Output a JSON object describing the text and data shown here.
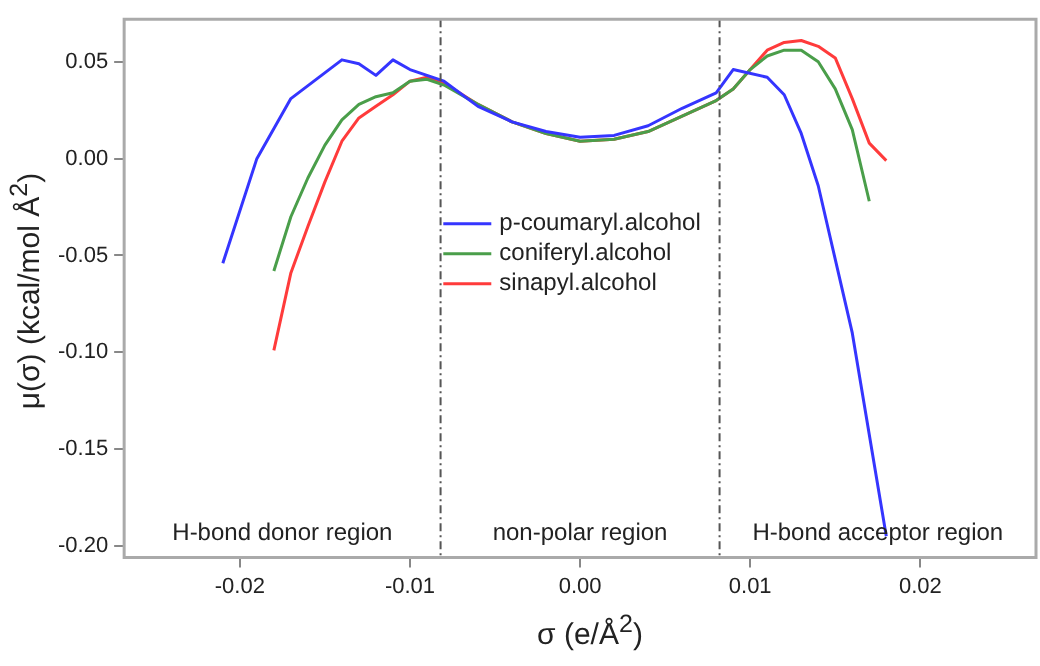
{
  "chart_data": {
    "type": "line",
    "xlabel": "σ (e/Å$^{2}$)",
    "ylabel": "μ(σ) (kcal/mol Å$^{2}$)",
    "xlim": [
      -0.0268,
      0.0268
    ],
    "ylim": [
      -0.206,
      0.072
    ],
    "xticks": [
      -0.02,
      -0.01,
      {
        "value": 0,
        "label": "0.00"
      },
      0.01,
      0.02
    ],
    "yticks": [
      {
        "value": -0.2,
        "label": "-0.20"
      },
      -0.15,
      {
        "value": -0.1,
        "label": "-0.10"
      },
      -0.05,
      {
        "value": 0,
        "label": "0.00"
      },
      0.05
    ],
    "grid": false,
    "legend": "center",
    "marker": "none",
    "line_style": "solid",
    "series": [
      {
        "name": "p-coumaryl.alcohol",
        "color": "#3535ff",
        "x": [
          -0.021,
          -0.019,
          -0.017,
          -0.014,
          -0.013,
          -0.012,
          -0.011,
          -0.01,
          -0.009,
          -0.008,
          -0.006,
          -0.004,
          -0.002,
          0,
          0.002,
          0.004,
          0.006,
          0.008,
          0.009,
          0.011,
          0.012,
          0.013,
          0.014,
          0.016,
          0.018
        ],
        "values": [
          -0.054,
          0.0,
          0.031,
          0.051,
          0.049,
          0.043,
          0.051,
          0.046,
          0.043,
          0.04,
          0.027,
          0.019,
          0.014,
          0.011,
          0.012,
          0.017,
          0.026,
          0.034,
          0.046,
          0.042,
          0.033,
          0.013,
          -0.014,
          -0.09,
          -0.195
        ]
      },
      {
        "name": "coniferyl.alcohol",
        "color": "#4a9e4a",
        "x": [
          -0.018,
          -0.017,
          -0.016,
          -0.015,
          -0.014,
          -0.013,
          -0.012,
          -0.011,
          -0.01,
          -0.009,
          -0.008,
          -0.006,
          -0.004,
          -0.002,
          0,
          0.002,
          0.004,
          0.006,
          0.008,
          0.009,
          0.01,
          0.011,
          0.012,
          0.013,
          0.014,
          0.015,
          0.016,
          0.017
        ],
        "values": [
          -0.058,
          -0.03,
          -0.01,
          0.007,
          0.02,
          0.028,
          0.032,
          0.034,
          0.04,
          0.041,
          0.038,
          0.028,
          0.019,
          0.013,
          0.009,
          0.01,
          0.014,
          0.022,
          0.03,
          0.036,
          0.046,
          0.053,
          0.056,
          0.056,
          0.05,
          0.036,
          0.015,
          -0.022
        ]
      },
      {
        "name": "sinapyl.alcohol",
        "color": "#ff3b3b",
        "x": [
          -0.018,
          -0.017,
          -0.016,
          -0.015,
          -0.014,
          -0.013,
          -0.012,
          -0.011,
          -0.01,
          -0.009,
          -0.008,
          -0.006,
          -0.004,
          -0.002,
          0,
          0.002,
          0.004,
          0.006,
          0.008,
          0.009,
          0.01,
          0.011,
          0.012,
          0.013,
          0.014,
          0.015,
          0.016,
          0.017,
          0.018
        ],
        "values": [
          -0.099,
          -0.059,
          -0.035,
          -0.012,
          0.009,
          0.021,
          0.027,
          0.033,
          0.04,
          0.042,
          0.039,
          0.028,
          0.019,
          0.013,
          0.009,
          0.01,
          0.014,
          0.022,
          0.03,
          0.036,
          0.046,
          0.056,
          0.06,
          0.061,
          0.058,
          0.052,
          0.031,
          0.008,
          -0.001
        ]
      }
    ],
    "ref_lines": [
      {
        "axis": "x",
        "value": -0.0082,
        "color": "#555555",
        "line_style": "dashed"
      },
      {
        "axis": "x",
        "value": 0.0082,
        "color": "#555555",
        "line_style": "dashed"
      }
    ],
    "annotations": [
      "H-bond donor region",
      "non-polar region",
      "H-bond acceptor region"
    ]
  }
}
